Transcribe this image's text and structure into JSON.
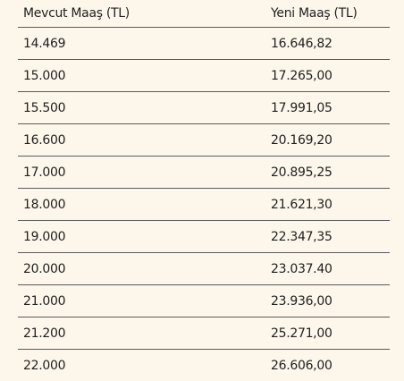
{
  "table": {
    "header": [
      "Mevcut Maaş (TL)",
      "Yeni Maaş (TL)"
    ],
    "rows": [
      [
        "14.469",
        "16.646,82"
      ],
      [
        "15.000",
        "17.265,00"
      ],
      [
        "15.500",
        "17.991,05"
      ],
      [
        "16.600",
        "20.169,20"
      ],
      [
        "17.000",
        "20.895,25"
      ],
      [
        "18.000",
        "21.621,30"
      ],
      [
        "19.000",
        "22.347,35"
      ],
      [
        "20.000",
        "23.037.40"
      ],
      [
        "21.000",
        "23.936,00"
      ],
      [
        "21.200",
        "25.271,00"
      ],
      [
        "22.000",
        "26.606,00"
      ]
    ]
  }
}
